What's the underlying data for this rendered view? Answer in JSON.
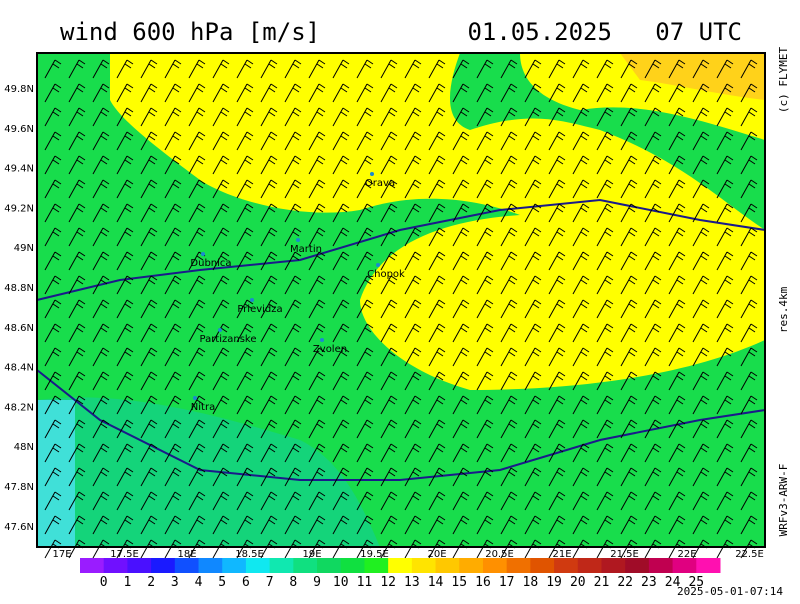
{
  "header": {
    "title": "wind 600 hPa [m/s]",
    "valid": "01.05.2025   07 UTC"
  },
  "side": {
    "copyright": "(c) FLYMET",
    "resolution": "res.4km",
    "model": "WRFv3-ARW-F"
  },
  "lon_ticks": [
    "17E",
    "17.5E",
    "18E",
    "18.5E",
    "19E",
    "19.5E",
    "20E",
    "20.5E",
    "21E",
    "21.5E",
    "22E",
    "22.5E"
  ],
  "lat_ticks": [
    "49.8N",
    "49.6N",
    "49.4N",
    "49.2N",
    "49N",
    "48.8N",
    "48.6N",
    "48.4N",
    "48.2N",
    "48N",
    "47.8N",
    "47.6N"
  ],
  "places": [
    "Orava",
    "Martin",
    "Dubnica",
    "Chopok",
    "Prievidza",
    "Partizanske",
    "Zvolen",
    "Nitra"
  ],
  "colorbar": {
    "labels": [
      "0",
      "1",
      "2",
      "3",
      "4",
      "5",
      "6",
      "7",
      "8",
      "9",
      "10",
      "11",
      "12",
      "13",
      "14",
      "15",
      "16",
      "17",
      "18",
      "19",
      "20",
      "21",
      "22",
      "23",
      "24",
      "25"
    ],
    "colors": [
      "#9a1cff",
      "#7010ff",
      "#4a10ff",
      "#1a1aff",
      "#1050ff",
      "#1088ff",
      "#10b8ff",
      "#10e8f0",
      "#10e8b0",
      "#10e080",
      "#10d860",
      "#10e040",
      "#20f020",
      "#ffff00",
      "#ffe400",
      "#ffc800",
      "#ffac00",
      "#ff9000",
      "#f07000",
      "#e05400",
      "#d03a10",
      "#c02818",
      "#b01820",
      "#a00c28",
      "#c00050",
      "#e00080",
      "#ff10b0"
    ]
  },
  "timestamp": "2025-05-01-07:14"
}
